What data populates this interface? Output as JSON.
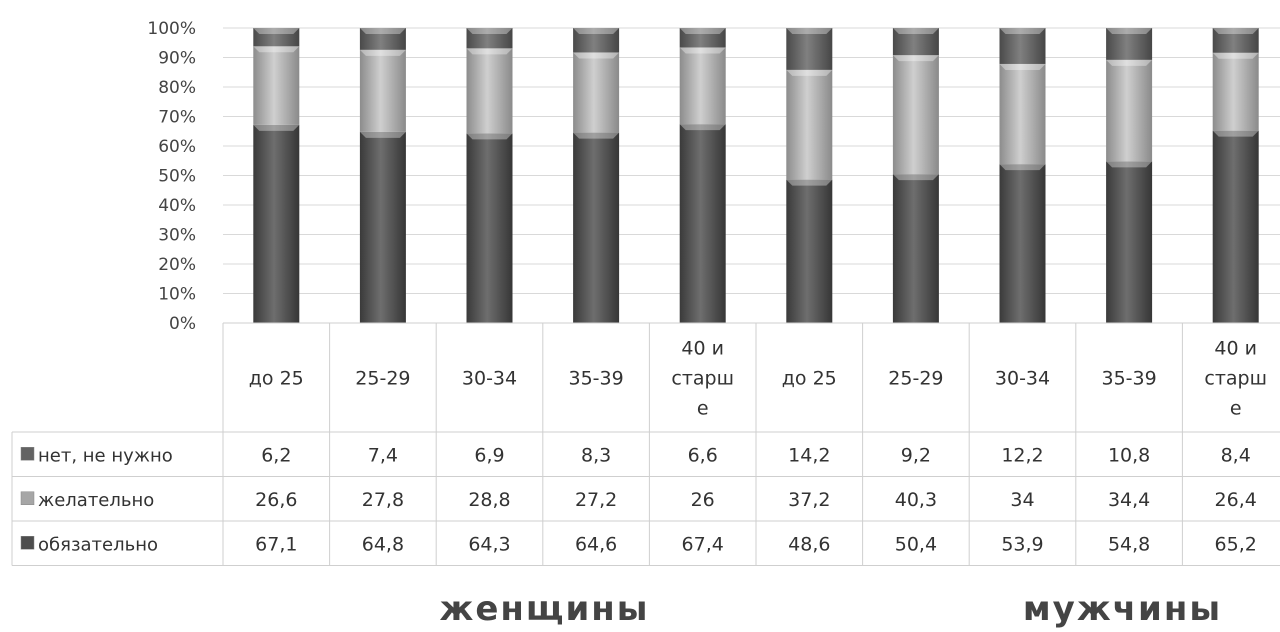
{
  "chart_data": {
    "type": "bar",
    "stacked": true,
    "normalized": true,
    "ylim": [
      0,
      100
    ],
    "yticks": [
      "0%",
      "10%",
      "20%",
      "30%",
      "40%",
      "50%",
      "60%",
      "70%",
      "80%",
      "90%",
      "100%"
    ],
    "grid": true,
    "categories": [
      [
        "до 25"
      ],
      [
        "25-29"
      ],
      [
        "30-34"
      ],
      [
        "35-39"
      ],
      [
        "40 и",
        "старш",
        "е"
      ],
      [
        "до 25"
      ],
      [
        "25-29"
      ],
      [
        "30-34"
      ],
      [
        "35-39"
      ],
      [
        "40 и",
        "старш",
        "е"
      ]
    ],
    "groups": [
      "женщины",
      "мужчины"
    ],
    "series": [
      {
        "name": "обязательно",
        "color": "#4d4d4d",
        "values": [
          67.1,
          64.8,
          64.3,
          64.6,
          67.4,
          48.6,
          50.4,
          53.9,
          54.8,
          65.2
        ]
      },
      {
        "name": "желательно",
        "color": "#a6a6a6",
        "values": [
          26.6,
          27.8,
          28.8,
          27.2,
          26,
          37.2,
          40.3,
          34,
          34.4,
          26.4
        ]
      },
      {
        "name": "нет, не нужно",
        "color": "#636363",
        "values": [
          6.2,
          7.4,
          6.9,
          8.3,
          6.6,
          14.2,
          9.2,
          12.2,
          10.8,
          8.4
        ]
      }
    ],
    "table_rows": [
      {
        "name": "нет, не нужно",
        "color": "#636363",
        "cells": [
          "6,2",
          "7,4",
          "6,9",
          "8,3",
          "6,6",
          "14,2",
          "9,2",
          "12,2",
          "10,8",
          "8,4"
        ]
      },
      {
        "name": "желательно",
        "color": "#a6a6a6",
        "cells": [
          "26,6",
          "27,8",
          "28,8",
          "27,2",
          "26",
          "37,2",
          "40,3",
          "34",
          "34,4",
          "26,4"
        ]
      },
      {
        "name": "обязательно",
        "color": "#4d4d4d",
        "cells": [
          "67,1",
          "64,8",
          "64,3",
          "64,6",
          "67,4",
          "48,6",
          "50,4",
          "53,9",
          "54,8",
          "65,2"
        ]
      }
    ]
  }
}
